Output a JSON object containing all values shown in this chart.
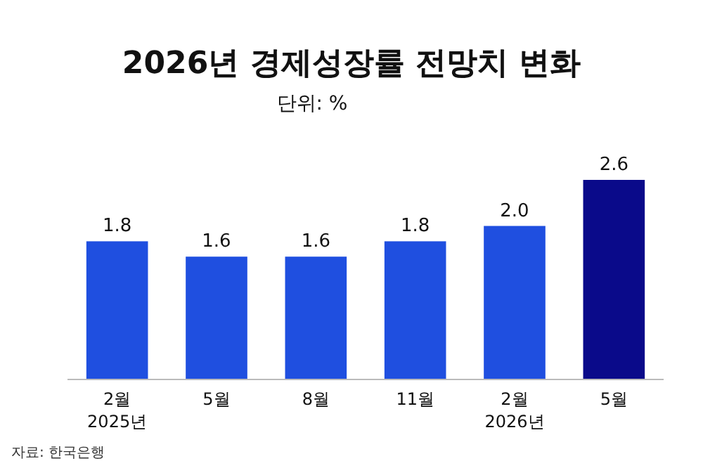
{
  "chart_data": {
    "type": "bar",
    "title": "2026년 경제성장률 전망치 변화",
    "subtitle": "단위: %",
    "categories": [
      "2월\n2025년",
      "5월",
      "8월",
      "11월",
      "2월\n2026년",
      "5월"
    ],
    "values": [
      1.8,
      1.6,
      1.6,
      1.8,
      2.0,
      2.6
    ],
    "colors": [
      "#1f4fe0",
      "#1f4fe0",
      "#1f4fe0",
      "#1f4fe0",
      "#1f4fe0",
      "#0a0a8a"
    ],
    "value_labels": [
      "1.8",
      "1.6",
      "1.6",
      "1.8",
      "2.0",
      "2.6"
    ],
    "annotations": [
      "자료: 한국은행"
    ]
  }
}
